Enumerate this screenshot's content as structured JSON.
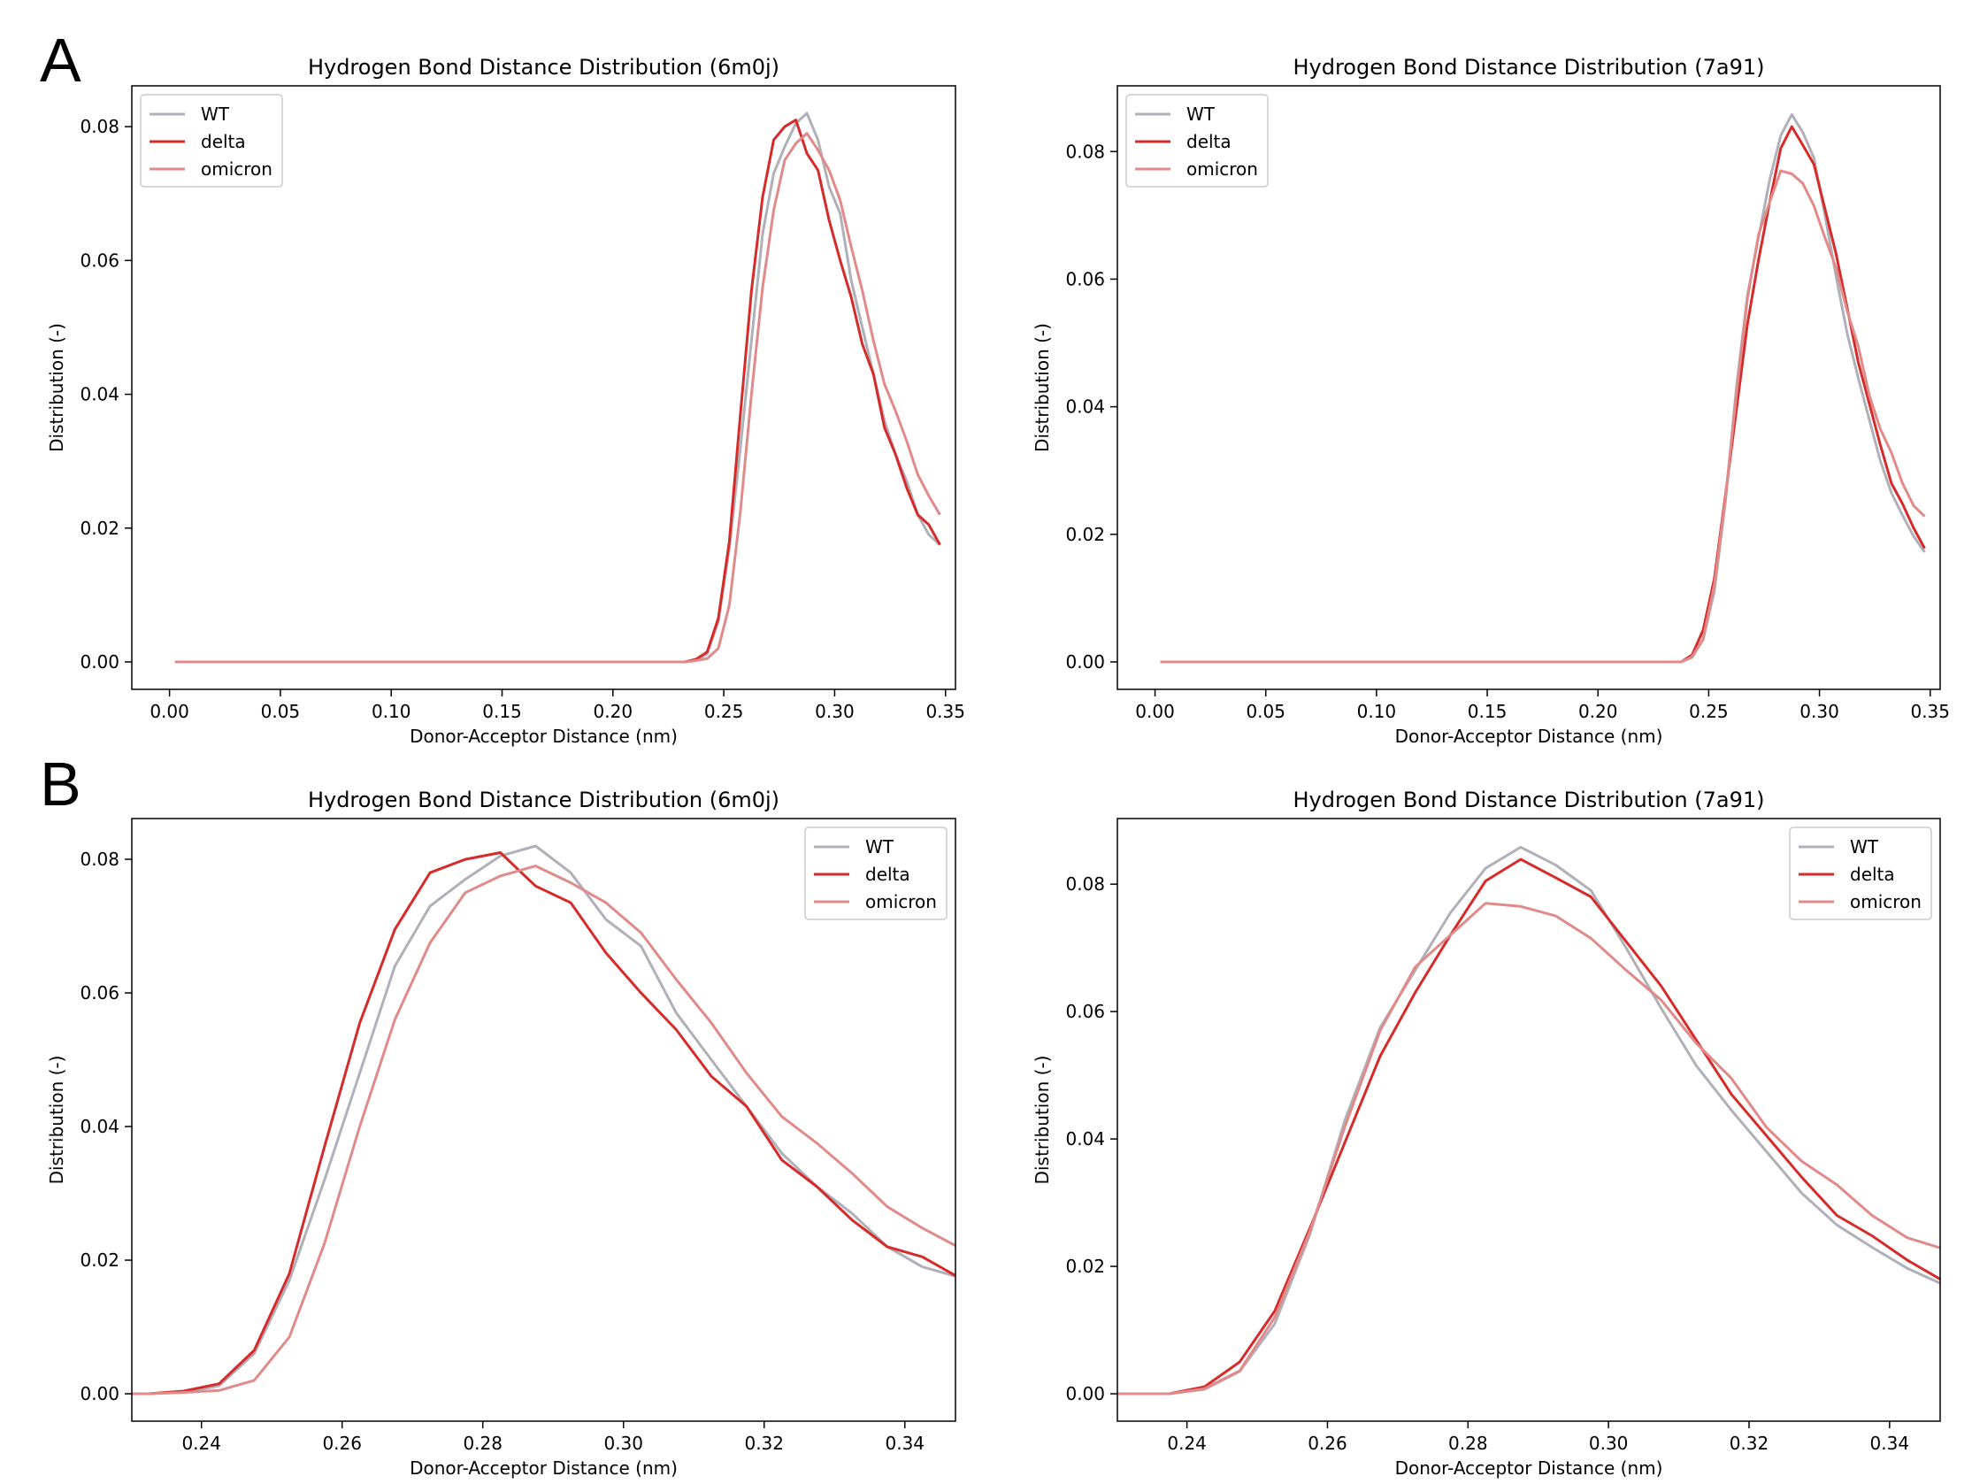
{
  "panel_labels": [
    "A",
    "B"
  ],
  "colors": {
    "WT": "#b0b0b8",
    "delta": "#d62b2b",
    "omicron": "#e08a8a"
  },
  "chart_data": [
    {
      "id": "A1",
      "panel": "A",
      "type": "line",
      "title": "Hydrogen Bond Distance Distribution (6m0j)",
      "xlabel": "Donor-Acceptor Distance (nm)",
      "ylabel": "Distribution (-)",
      "xlim": [
        -0.017,
        0.3545
      ],
      "ylim": [
        -0.0041,
        0.0861
      ],
      "xticks": [
        0.0,
        0.05,
        0.1,
        0.15,
        0.2,
        0.25,
        0.3,
        0.35
      ],
      "xticklabels": [
        "0.00",
        "0.05",
        "0.10",
        "0.15",
        "0.20",
        "0.25",
        "0.30",
        "0.35"
      ],
      "yticks": [
        0.0,
        0.02,
        0.04,
        0.06,
        0.08
      ],
      "yticklabels": [
        "0.00",
        "0.02",
        "0.04",
        "0.06",
        "0.08"
      ],
      "legend_loc": "upper left",
      "series": [
        {
          "name": "WT",
          "x": [
            0.0025,
            0.2325,
            0.2375,
            0.2425,
            0.2475,
            0.2525,
            0.2575,
            0.2625,
            0.2675,
            0.2725,
            0.2775,
            0.2825,
            0.2875,
            0.2925,
            0.2975,
            0.3025,
            0.3075,
            0.3125,
            0.3175,
            0.3225,
            0.3275,
            0.3325,
            0.3375,
            0.3425,
            0.3475
          ],
          "y": [
            0,
            0,
            0.0002,
            0.0012,
            0.006,
            0.017,
            0.032,
            0.048,
            0.064,
            0.073,
            0.077,
            0.0805,
            0.082,
            0.078,
            0.071,
            0.067,
            0.057,
            0.05,
            0.043,
            0.036,
            0.031,
            0.027,
            0.022,
            0.019,
            0.0175
          ]
        },
        {
          "name": "delta",
          "x": [
            0.0025,
            0.2325,
            0.2375,
            0.2425,
            0.2475,
            0.2525,
            0.2575,
            0.2625,
            0.2675,
            0.2725,
            0.2775,
            0.2825,
            0.2875,
            0.2925,
            0.2975,
            0.3025,
            0.3075,
            0.3125,
            0.3175,
            0.3225,
            0.3275,
            0.3325,
            0.3375,
            0.3425,
            0.3475
          ],
          "y": [
            0,
            0,
            0.0004,
            0.0015,
            0.0065,
            0.018,
            0.037,
            0.0555,
            0.0695,
            0.078,
            0.08,
            0.081,
            0.076,
            0.0735,
            0.066,
            0.06,
            0.0545,
            0.0475,
            0.043,
            0.035,
            0.031,
            0.026,
            0.022,
            0.0205,
            0.0175
          ]
        },
        {
          "name": "omicron",
          "x": [
            0.0025,
            0.2325,
            0.2375,
            0.2425,
            0.2475,
            0.2525,
            0.2575,
            0.2625,
            0.2675,
            0.2725,
            0.2775,
            0.2825,
            0.2875,
            0.2925,
            0.2975,
            0.3025,
            0.3075,
            0.3125,
            0.3175,
            0.3225,
            0.3275,
            0.3325,
            0.3375,
            0.3425,
            0.3475
          ],
          "y": [
            0,
            0,
            0.0002,
            0.0005,
            0.002,
            0.0085,
            0.0225,
            0.04,
            0.056,
            0.0675,
            0.075,
            0.0775,
            0.079,
            0.0765,
            0.0735,
            0.069,
            0.062,
            0.0555,
            0.048,
            0.0415,
            0.0375,
            0.033,
            0.028,
            0.0248,
            0.022
          ]
        }
      ]
    },
    {
      "id": "A2",
      "panel": "A",
      "type": "line",
      "title": "Hydrogen Bond Distance Distribution (7a91)",
      "xlabel": "Donor-Acceptor Distance (nm)",
      "ylabel": "Distribution (-)",
      "xlim": [
        -0.017,
        0.3545
      ],
      "ylim": [
        -0.0043,
        0.0903
      ],
      "xticks": [
        0.0,
        0.05,
        0.1,
        0.15,
        0.2,
        0.25,
        0.3,
        0.35
      ],
      "xticklabels": [
        "0.00",
        "0.05",
        "0.10",
        "0.15",
        "0.20",
        "0.25",
        "0.30",
        "0.35"
      ],
      "yticks": [
        0.0,
        0.02,
        0.04,
        0.06,
        0.08
      ],
      "yticklabels": [
        "0.00",
        "0.02",
        "0.04",
        "0.06",
        "0.08"
      ],
      "legend_loc": "upper left",
      "series": [
        {
          "name": "WT",
          "x": [
            0.0025,
            0.2325,
            0.2375,
            0.2425,
            0.2475,
            0.2525,
            0.2575,
            0.2625,
            0.2675,
            0.2725,
            0.2775,
            0.2825,
            0.2875,
            0.2925,
            0.2975,
            0.3025,
            0.3075,
            0.3125,
            0.3175,
            0.3225,
            0.3275,
            0.3325,
            0.3375,
            0.3425,
            0.3475
          ],
          "y": [
            0,
            0,
            0,
            0.0007,
            0.0035,
            0.011,
            0.025,
            0.043,
            0.0575,
            0.0665,
            0.0755,
            0.0825,
            0.0858,
            0.083,
            0.079,
            0.07,
            0.0605,
            0.0515,
            0.0445,
            0.038,
            0.0315,
            0.0265,
            0.023,
            0.0197,
            0.0172
          ]
        },
        {
          "name": "delta",
          "x": [
            0.0025,
            0.2325,
            0.2375,
            0.2425,
            0.2475,
            0.2525,
            0.2575,
            0.2625,
            0.2675,
            0.2725,
            0.2775,
            0.2825,
            0.2875,
            0.2925,
            0.2975,
            0.3025,
            0.3075,
            0.3125,
            0.3175,
            0.3225,
            0.3275,
            0.3325,
            0.3375,
            0.3425,
            0.3475
          ],
          "y": [
            0,
            0,
            0,
            0.0011,
            0.005,
            0.013,
            0.026,
            0.0395,
            0.053,
            0.063,
            0.072,
            0.0805,
            0.0839,
            0.081,
            0.078,
            0.071,
            0.064,
            0.0555,
            0.047,
            0.0405,
            0.034,
            0.028,
            0.0248,
            0.021,
            0.0178
          ]
        },
        {
          "name": "omicron",
          "x": [
            0.0025,
            0.2325,
            0.2375,
            0.2425,
            0.2475,
            0.2525,
            0.2575,
            0.2625,
            0.2675,
            0.2725,
            0.2775,
            0.2825,
            0.2875,
            0.2925,
            0.2975,
            0.3025,
            0.3075,
            0.3125,
            0.3175,
            0.3225,
            0.3275,
            0.3325,
            0.3375,
            0.3425,
            0.3475
          ],
          "y": [
            0,
            0,
            0,
            0.0008,
            0.0036,
            0.012,
            0.0255,
            0.042,
            0.057,
            0.067,
            0.072,
            0.077,
            0.0765,
            0.075,
            0.0715,
            0.0665,
            0.0618,
            0.055,
            0.0495,
            0.0418,
            0.0365,
            0.0328,
            0.028,
            0.0245,
            0.0228
          ]
        }
      ]
    },
    {
      "id": "B1",
      "panel": "B",
      "type": "line",
      "title": "Hydrogen Bond Distance Distribution (6m0j)",
      "xlabel": "Donor-Acceptor Distance (nm)",
      "ylabel": "Distribution (-)",
      "xlim": [
        0.2301,
        0.3472
      ],
      "ylim": [
        -0.0041,
        0.0861
      ],
      "xticks": [
        0.24,
        0.26,
        0.28,
        0.3,
        0.32,
        0.34
      ],
      "xticklabels": [
        "0.24",
        "0.26",
        "0.28",
        "0.30",
        "0.32",
        "0.34"
      ],
      "yticks": [
        0.0,
        0.02,
        0.04,
        0.06,
        0.08
      ],
      "yticklabels": [
        "0.00",
        "0.02",
        "0.04",
        "0.06",
        "0.08"
      ],
      "legend_loc": "upper right",
      "series": [
        {
          "name": "WT",
          "x": [
            0.2275,
            0.2325,
            0.2375,
            0.2425,
            0.2475,
            0.2525,
            0.2575,
            0.2625,
            0.2675,
            0.2725,
            0.2775,
            0.2825,
            0.2875,
            0.2925,
            0.2975,
            0.3025,
            0.3075,
            0.3125,
            0.3175,
            0.3225,
            0.3275,
            0.3325,
            0.3375,
            0.3425,
            0.3475
          ],
          "y": [
            0,
            0,
            0.0002,
            0.0012,
            0.006,
            0.017,
            0.032,
            0.048,
            0.064,
            0.073,
            0.077,
            0.0805,
            0.082,
            0.078,
            0.071,
            0.067,
            0.057,
            0.05,
            0.043,
            0.036,
            0.031,
            0.027,
            0.022,
            0.019,
            0.0175
          ]
        },
        {
          "name": "delta",
          "x": [
            0.2275,
            0.2325,
            0.2375,
            0.2425,
            0.2475,
            0.2525,
            0.2575,
            0.2625,
            0.2675,
            0.2725,
            0.2775,
            0.2825,
            0.2875,
            0.2925,
            0.2975,
            0.3025,
            0.3075,
            0.3125,
            0.3175,
            0.3225,
            0.3275,
            0.3325,
            0.3375,
            0.3425,
            0.3475
          ],
          "y": [
            0,
            0,
            0.0004,
            0.0015,
            0.0065,
            0.018,
            0.037,
            0.0555,
            0.0695,
            0.078,
            0.08,
            0.081,
            0.076,
            0.0735,
            0.066,
            0.06,
            0.0545,
            0.0475,
            0.043,
            0.035,
            0.031,
            0.026,
            0.022,
            0.0205,
            0.0175
          ]
        },
        {
          "name": "omicron",
          "x": [
            0.2275,
            0.2325,
            0.2375,
            0.2425,
            0.2475,
            0.2525,
            0.2575,
            0.2625,
            0.2675,
            0.2725,
            0.2775,
            0.2825,
            0.2875,
            0.2925,
            0.2975,
            0.3025,
            0.3075,
            0.3125,
            0.3175,
            0.3225,
            0.3275,
            0.3325,
            0.3375,
            0.3425,
            0.3475
          ],
          "y": [
            0,
            0,
            0.0002,
            0.0005,
            0.002,
            0.0085,
            0.0225,
            0.04,
            0.056,
            0.0675,
            0.075,
            0.0775,
            0.079,
            0.0765,
            0.0735,
            0.069,
            0.062,
            0.0555,
            0.048,
            0.0415,
            0.0375,
            0.033,
            0.028,
            0.0248,
            0.022
          ]
        }
      ]
    },
    {
      "id": "B2",
      "panel": "B",
      "type": "line",
      "title": "Hydrogen Bond Distance Distribution (7a91)",
      "xlabel": "Donor-Acceptor Distance (nm)",
      "ylabel": "Distribution (-)",
      "xlim": [
        0.2301,
        0.3472
      ],
      "ylim": [
        -0.0043,
        0.0903
      ],
      "xticks": [
        0.24,
        0.26,
        0.28,
        0.3,
        0.32,
        0.34
      ],
      "xticklabels": [
        "0.24",
        "0.26",
        "0.28",
        "0.30",
        "0.32",
        "0.34"
      ],
      "yticks": [
        0.0,
        0.02,
        0.04,
        0.06,
        0.08
      ],
      "yticklabels": [
        "0.00",
        "0.02",
        "0.04",
        "0.06",
        "0.08"
      ],
      "legend_loc": "upper right",
      "series": [
        {
          "name": "WT",
          "x": [
            0.2275,
            0.2325,
            0.2375,
            0.2425,
            0.2475,
            0.2525,
            0.2575,
            0.2625,
            0.2675,
            0.2725,
            0.2775,
            0.2825,
            0.2875,
            0.2925,
            0.2975,
            0.3025,
            0.3075,
            0.3125,
            0.3175,
            0.3225,
            0.3275,
            0.3325,
            0.3375,
            0.3425,
            0.3475
          ],
          "y": [
            0,
            0,
            0,
            0.0007,
            0.0035,
            0.011,
            0.025,
            0.043,
            0.0575,
            0.0665,
            0.0755,
            0.0825,
            0.0858,
            0.083,
            0.079,
            0.07,
            0.0605,
            0.0515,
            0.0445,
            0.038,
            0.0315,
            0.0265,
            0.023,
            0.0197,
            0.0172
          ]
        },
        {
          "name": "delta",
          "x": [
            0.2275,
            0.2325,
            0.2375,
            0.2425,
            0.2475,
            0.2525,
            0.2575,
            0.2625,
            0.2675,
            0.2725,
            0.2775,
            0.2825,
            0.2875,
            0.2925,
            0.2975,
            0.3025,
            0.3075,
            0.3125,
            0.3175,
            0.3225,
            0.3275,
            0.3325,
            0.3375,
            0.3425,
            0.3475
          ],
          "y": [
            0,
            0,
            0,
            0.0011,
            0.005,
            0.013,
            0.026,
            0.0395,
            0.053,
            0.063,
            0.072,
            0.0805,
            0.0839,
            0.081,
            0.078,
            0.071,
            0.064,
            0.0555,
            0.047,
            0.0405,
            0.034,
            0.028,
            0.0248,
            0.021,
            0.0178
          ]
        },
        {
          "name": "omicron",
          "x": [
            0.2275,
            0.2325,
            0.2375,
            0.2425,
            0.2475,
            0.2525,
            0.2575,
            0.2625,
            0.2675,
            0.2725,
            0.2775,
            0.2825,
            0.2875,
            0.2925,
            0.2975,
            0.3025,
            0.3075,
            0.3125,
            0.3175,
            0.3225,
            0.3275,
            0.3325,
            0.3375,
            0.3425,
            0.3475
          ],
          "y": [
            0,
            0,
            0,
            0.0008,
            0.0036,
            0.012,
            0.0255,
            0.042,
            0.057,
            0.067,
            0.072,
            0.077,
            0.0765,
            0.075,
            0.0715,
            0.0665,
            0.0618,
            0.055,
            0.0495,
            0.0418,
            0.0365,
            0.0328,
            0.028,
            0.0245,
            0.0228
          ]
        }
      ]
    }
  ]
}
